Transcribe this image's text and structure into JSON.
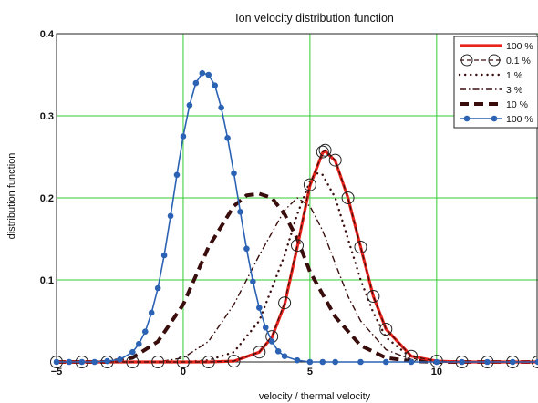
{
  "chart_data": {
    "type": "line",
    "title": "Ion velocity distribution function",
    "xlabel": "velocity / thermal velocity",
    "ylabel": "distribution function",
    "xlim": [
      -5,
      14
    ],
    "ylim": [
      0,
      0.4
    ],
    "x_ticks": [
      -5,
      0,
      5,
      10
    ],
    "x_tick_labels": [
      "−5",
      "0",
      "5",
      "10"
    ],
    "y_ticks": [
      0.1,
      0.2,
      0.3,
      0.4
    ],
    "y_tick_labels": [
      "0.1",
      "0.2",
      "0.3",
      "0.4"
    ],
    "grid": true,
    "legend_position": "top-right",
    "colors": {
      "grid": "#33cc33",
      "red": "#e8231b",
      "dark": "#3a0d0d",
      "blue": "#2b62b4"
    },
    "series": [
      {
        "name": "100 %",
        "color": "#e8231b",
        "style": "solid-thick",
        "x": [
          -5,
          -4,
          -3,
          -2,
          -1,
          0,
          1,
          2,
          3,
          3.5,
          4,
          4.5,
          5,
          5.5,
          5.6,
          6,
          6.5,
          7,
          7.5,
          8,
          9,
          10,
          11,
          12,
          13,
          14
        ],
        "y": [
          0,
          0,
          0,
          0,
          0,
          0,
          0,
          0.001,
          0.012,
          0.03,
          0.07,
          0.14,
          0.215,
          0.255,
          0.257,
          0.245,
          0.2,
          0.14,
          0.08,
          0.04,
          0.007,
          0.001,
          0,
          0,
          0,
          0
        ]
      },
      {
        "name": "0.1 %",
        "color": "#3a0d0d",
        "style": "dashed-circles",
        "x": [
          -5,
          -4,
          -3,
          -2,
          -1,
          0,
          1,
          2,
          3,
          3.5,
          4,
          4.5,
          5,
          5.5,
          5.6,
          6,
          6.5,
          7,
          7.5,
          8,
          9,
          10,
          11,
          12,
          13,
          14
        ],
        "y": [
          0,
          0,
          0,
          0,
          0,
          0,
          0,
          0.001,
          0.012,
          0.031,
          0.072,
          0.142,
          0.216,
          0.256,
          0.258,
          0.246,
          0.2,
          0.14,
          0.08,
          0.04,
          0.007,
          0.001,
          0,
          0,
          0,
          0
        ]
      },
      {
        "name": "1 %",
        "color": "#3a0d0d",
        "style": "dotted",
        "x": [
          -5,
          -4,
          -3,
          -2,
          -1,
          0,
          1,
          2,
          3,
          4,
          4.5,
          5,
          5.3,
          5.5,
          6,
          6.5,
          7,
          7.5,
          8,
          9,
          10,
          11,
          12,
          13,
          14
        ],
        "y": [
          0,
          0,
          0,
          0,
          0,
          0,
          0.002,
          0.012,
          0.05,
          0.13,
          0.18,
          0.22,
          0.23,
          0.228,
          0.2,
          0.15,
          0.1,
          0.06,
          0.03,
          0.005,
          0.001,
          0,
          0,
          0,
          0
        ]
      },
      {
        "name": "3 %",
        "color": "#3a0d0d",
        "style": "dash-dot",
        "x": [
          -5,
          -4,
          -3,
          -2,
          -1,
          0,
          1,
          2,
          3,
          4,
          4.5,
          5,
          5.5,
          6,
          6.5,
          7,
          8,
          9,
          10,
          11,
          12,
          13,
          14
        ],
        "y": [
          0,
          0,
          0,
          0,
          0,
          0.005,
          0.025,
          0.07,
          0.13,
          0.185,
          0.2,
          0.19,
          0.16,
          0.12,
          0.08,
          0.05,
          0.015,
          0.003,
          0,
          0,
          0,
          0,
          0
        ]
      },
      {
        "name": "10 %",
        "color": "#3a0d0d",
        "style": "dashed-thick",
        "x": [
          -5,
          -4,
          -3,
          -2,
          -1,
          0,
          1,
          2,
          2.5,
          3,
          3.5,
          4,
          4.5,
          5,
          6,
          7,
          8,
          9,
          10,
          11,
          12,
          13,
          14
        ],
        "y": [
          0,
          0,
          0,
          0.005,
          0.025,
          0.07,
          0.14,
          0.19,
          0.203,
          0.205,
          0.2,
          0.18,
          0.15,
          0.11,
          0.055,
          0.02,
          0.005,
          0.001,
          0,
          0,
          0,
          0,
          0
        ]
      },
      {
        "name": "100 %",
        "color": "#2b62b4",
        "style": "solid-dots",
        "x": [
          -5,
          -4.5,
          -4,
          -3.5,
          -3,
          -2.5,
          -2,
          -1.75,
          -1.5,
          -1.25,
          -1,
          -0.75,
          -0.5,
          -0.25,
          0,
          0.25,
          0.5,
          0.75,
          1,
          1.25,
          1.5,
          1.75,
          2,
          2.25,
          2.5,
          2.75,
          3,
          3.25,
          3.5,
          3.75,
          4,
          4.5,
          5,
          5.5,
          6,
          7,
          8,
          9,
          10,
          11,
          12,
          13,
          14
        ],
        "y": [
          0,
          0,
          0,
          0,
          0.001,
          0.003,
          0.012,
          0.022,
          0.037,
          0.06,
          0.09,
          0.13,
          0.178,
          0.228,
          0.275,
          0.313,
          0.34,
          0.352,
          0.35,
          0.337,
          0.31,
          0.273,
          0.23,
          0.183,
          0.138,
          0.098,
          0.066,
          0.042,
          0.025,
          0.013,
          0.007,
          0.002,
          0,
          0,
          0,
          0,
          0,
          0,
          0,
          0,
          0,
          0,
          0
        ]
      }
    ]
  }
}
